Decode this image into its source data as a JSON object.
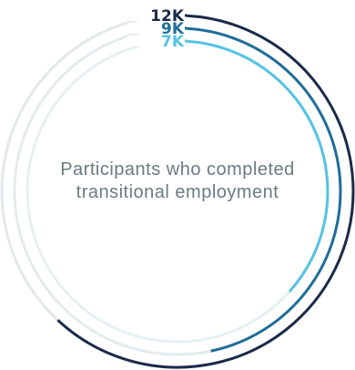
{
  "chart_data": {
    "type": "radial-bar",
    "center_label": "Participants who completed transitional employment",
    "series": [
      {
        "label": "12K",
        "value": 12,
        "color": "#1b2a4a",
        "track_color": "#e3e8ec"
      },
      {
        "label": "9K",
        "value": 9,
        "color": "#1f6d9a",
        "track_color": "#e3ebef"
      },
      {
        "label": "7K",
        "value": 7,
        "color": "#55c3e3",
        "track_color": "#e6f0f4"
      }
    ]
  }
}
